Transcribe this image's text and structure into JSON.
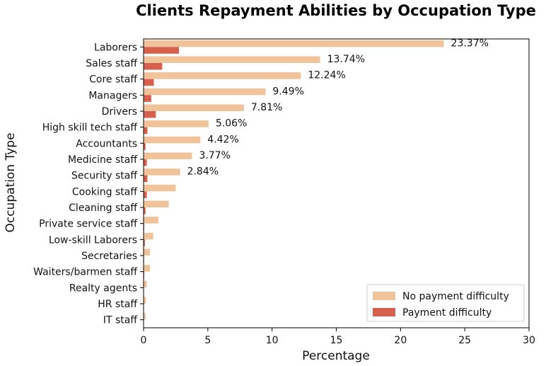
{
  "chart_data": {
    "type": "bar",
    "orientation": "horizontal",
    "title": "Clients Repayment Abilities by Occupation Type",
    "xlabel": "Percentage",
    "ylabel": "Occupation Type",
    "xlim": [
      0,
      30
    ],
    "xticks": [
      0,
      5,
      10,
      15,
      20,
      25,
      30
    ],
    "grid": false,
    "legend_position": "bottom-right",
    "categories": [
      "Laborers",
      "Sales staff",
      "Core staff",
      "Managers",
      "Drivers",
      "High skill tech staff",
      "Accountants",
      "Medicine staff",
      "Security staff",
      "Cooking staff",
      "Cleaning staff",
      "Private service staff",
      "Low-skill Laborers",
      "Secretaries",
      "Waiters/barmen staff",
      "Realty agents",
      "HR staff",
      "IT staff"
    ],
    "series": [
      {
        "name": "No payment difficulty",
        "color": "#f0c39a",
        "values": [
          23.37,
          13.74,
          12.24,
          9.49,
          7.81,
          5.06,
          4.42,
          3.77,
          2.84,
          2.5,
          1.95,
          1.15,
          0.75,
          0.5,
          0.5,
          0.25,
          0.18,
          0.15
        ]
      },
      {
        "name": "Payment difficulty",
        "color": "#d65f4d",
        "values": [
          2.75,
          1.45,
          0.8,
          0.6,
          0.95,
          0.3,
          0.15,
          0.25,
          0.3,
          0.25,
          0.15,
          0.05,
          0.1,
          0.04,
          0.05,
          0.03,
          0.02,
          0.01
        ]
      }
    ],
    "data_labels": [
      "23.37%",
      "13.74%",
      "12.24%",
      "9.49%",
      "7.81%",
      "5.06%",
      "4.42%",
      "3.77%",
      "2.84%"
    ]
  }
}
